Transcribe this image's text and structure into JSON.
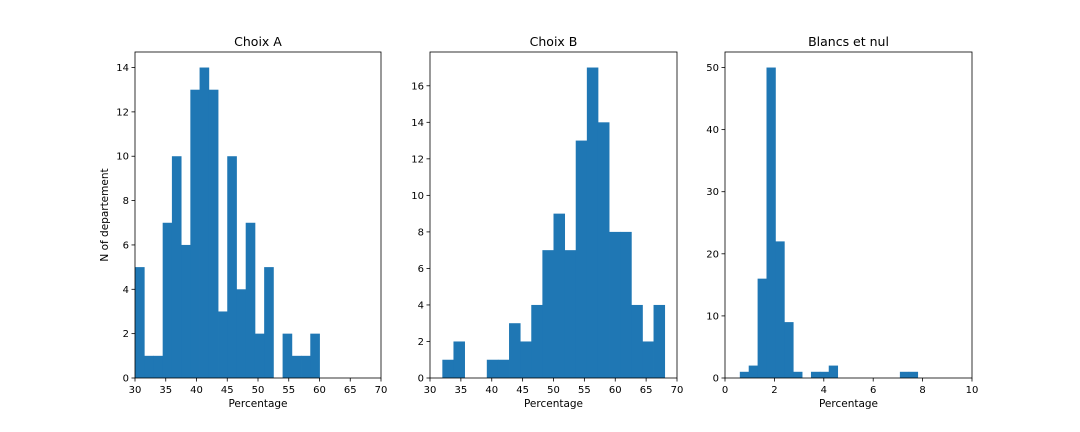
{
  "chart_data": [
    {
      "type": "histogram",
      "title": "Choix A",
      "xlabel": "Percentage",
      "ylabel": "N of departement",
      "xlim": [
        30,
        70
      ],
      "ylim": [
        0,
        14.7
      ],
      "xticks": [
        30,
        35,
        40,
        45,
        50,
        55,
        60,
        65,
        70
      ],
      "yticks": [
        0,
        2,
        4,
        6,
        8,
        10,
        12,
        14
      ],
      "color": "#1f77b4",
      "bin_start": 30.0,
      "bin_width": 1.5,
      "values": [
        5,
        1,
        1,
        7,
        10,
        6,
        13,
        14,
        13,
        3,
        10,
        4,
        7,
        2,
        5,
        0,
        2,
        1,
        1,
        2
      ]
    },
    {
      "type": "histogram",
      "title": "Choix B",
      "xlabel": "Percentage",
      "ylabel": "",
      "xlim": [
        30,
        70
      ],
      "ylim": [
        0,
        17.85
      ],
      "xticks": [
        30,
        35,
        40,
        45,
        50,
        55,
        60,
        65,
        70
      ],
      "yticks": [
        0,
        2,
        4,
        6,
        8,
        10,
        12,
        14,
        16
      ],
      "color": "#1f77b4",
      "bin_start": 32.0,
      "bin_width": 1.8,
      "values": [
        1,
        2,
        0,
        0,
        1,
        1,
        3,
        2,
        4,
        7,
        9,
        7,
        13,
        17,
        14,
        8,
        8,
        4,
        2,
        4
      ]
    },
    {
      "type": "histogram",
      "title": "Blancs et nul",
      "xlabel": "Percentage",
      "ylabel": "",
      "xlim": [
        0,
        10
      ],
      "ylim": [
        0,
        52.5
      ],
      "xticks": [
        0,
        2,
        4,
        6,
        8,
        10
      ],
      "yticks": [
        0,
        10,
        20,
        30,
        40,
        50
      ],
      "color": "#1f77b4",
      "bin_start": 0.6,
      "bin_width": 0.36,
      "values": [
        1,
        2,
        16,
        50,
        22,
        9,
        1,
        0,
        1,
        1,
        2,
        0,
        0,
        0,
        0,
        0,
        0,
        0,
        1,
        1
      ]
    }
  ]
}
